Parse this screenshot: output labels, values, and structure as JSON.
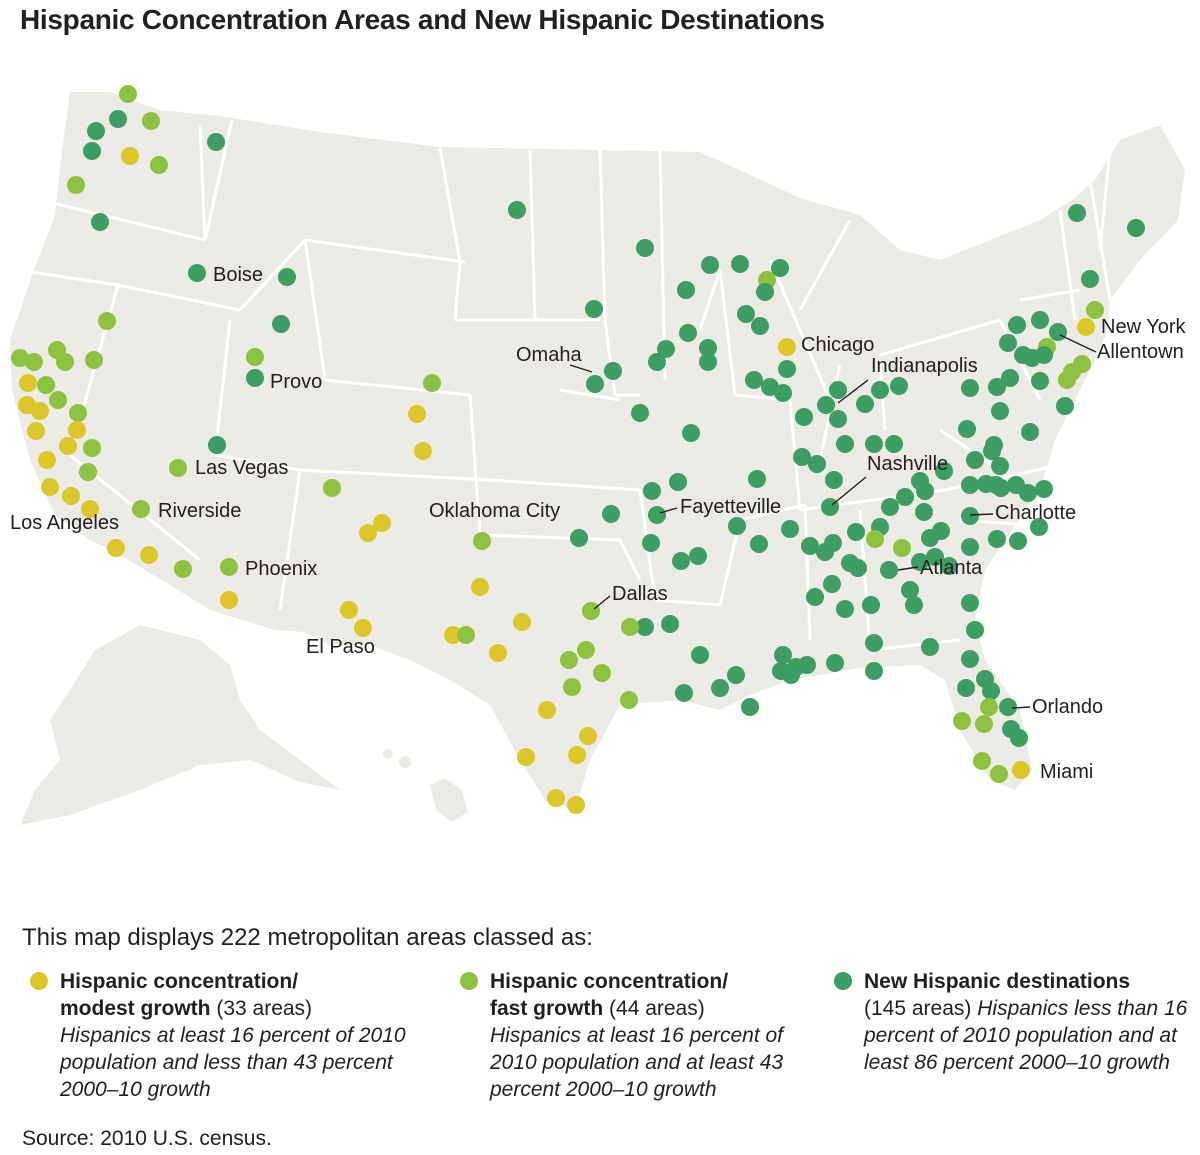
{
  "title": "Hispanic Concentration Areas and New Hispanic Destinations",
  "colors": {
    "modest": "#dcc72a",
    "fast": "#8cc23f",
    "new": "#3d9e64",
    "land": "#eceae4",
    "border": "#ffffff"
  },
  "city_labels": [
    "Boise",
    "Provo",
    "Las Vegas",
    "Riverside",
    "Los Angeles",
    "Phoenix",
    "El Paso",
    "Oklahoma City",
    "Omaha",
    "Dallas",
    "Fayetteville",
    "Chicago",
    "Indianapolis",
    "Nashville",
    "Charlotte",
    "Atlanta",
    "New York",
    "Allentown",
    "Orlando",
    "Miami"
  ],
  "intro": "This map displays 222 metropolitan areas classed as:",
  "legend": [
    {
      "key": "modest",
      "bold1": "Hispanic concentration/",
      "bold2": "modest growth",
      "count": "(33 areas)",
      "desc": "Hispanics at least 16 percent of 2010 population and less than 43 percent 2000–10 growth"
    },
    {
      "key": "fast",
      "bold1": "Hispanic concentration/",
      "bold2": "fast growth",
      "count": "(44 areas)",
      "desc": "Hispanics at least 16 percent of 2010 population and at least 43 percent 2000–10 growth"
    },
    {
      "key": "new",
      "bold1": "New Hispanic destinations",
      "count": "(145 areas)",
      "desc": "Hispanics less than 16 percent of 2010 population and at least 86 percent 2000–10 growth"
    }
  ],
  "source": "Source: 2010 U.S. census."
}
